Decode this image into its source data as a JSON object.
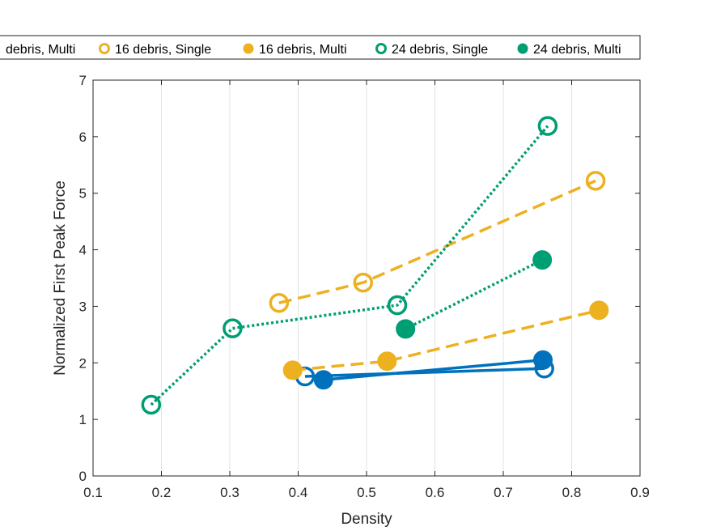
{
  "chart_data": {
    "type": "line",
    "title": "",
    "xlabel": "Density",
    "ylabel": "Normalized First Peak Force",
    "xlim": [
      0.1,
      0.9
    ],
    "ylim": [
      0,
      7
    ],
    "xticks": [
      0.1,
      0.2,
      0.3,
      0.4,
      0.5,
      0.6,
      0.7,
      0.8,
      0.9
    ],
    "yticks": [
      0,
      1,
      2,
      3,
      4,
      5,
      6,
      7
    ],
    "xtick_labels": [
      "0.1",
      "0.2",
      "0.3",
      "0.4",
      "0.5",
      "0.6",
      "0.7",
      "0.8",
      "0.9"
    ],
    "ytick_labels": [
      "0",
      "1",
      "2",
      "3",
      "4",
      "5",
      "6",
      "7"
    ],
    "grid": "vertical",
    "legend_placement": "top",
    "legend_entries": [
      {
        "label": "debris, Multi",
        "color": "#0072BD",
        "marker": "filled"
      },
      {
        "label": "16 debris, Single",
        "color": "#EDB120",
        "marker": "open"
      },
      {
        "label": "16 debris, Multi",
        "color": "#EDB120",
        "marker": "filled"
      },
      {
        "label": "24 debris, Single",
        "color": "#009E73",
        "marker": "open"
      },
      {
        "label": "24 debris, Multi",
        "color": "#009E73",
        "marker": "filled"
      }
    ],
    "series": [
      {
        "color": "#0072BD",
        "line_style": "solid",
        "marker": "open",
        "x": [
          0.41,
          0.76
        ],
        "y": [
          1.76,
          1.9
        ]
      },
      {
        "color": "#0072BD",
        "line_style": "solid",
        "marker": "filled",
        "x": [
          0.437,
          0.758
        ],
        "y": [
          1.7,
          2.05
        ]
      },
      {
        "name": "16 debris, Single",
        "color": "#EDB120",
        "line_style": "dashed",
        "marker": "open",
        "x": [
          0.372,
          0.495,
          0.835
        ],
        "y": [
          3.06,
          3.42,
          5.22
        ]
      },
      {
        "name": "16 debris, Multi",
        "color": "#EDB120",
        "line_style": "dashed",
        "marker": "filled",
        "x": [
          0.392,
          0.53,
          0.84
        ],
        "y": [
          1.87,
          2.03,
          2.93
        ]
      },
      {
        "name": "24 debris, Single",
        "color": "#009E73",
        "line_style": "dotted",
        "marker": "open",
        "x": [
          0.185,
          0.304,
          0.545,
          0.765
        ],
        "y": [
          1.26,
          2.61,
          3.02,
          6.19
        ]
      },
      {
        "name": "24 debris, Multi",
        "color": "#009E73",
        "line_style": "dotted",
        "marker": "filled",
        "x": [
          0.557,
          0.757
        ],
        "y": [
          2.6,
          3.82
        ]
      }
    ]
  }
}
